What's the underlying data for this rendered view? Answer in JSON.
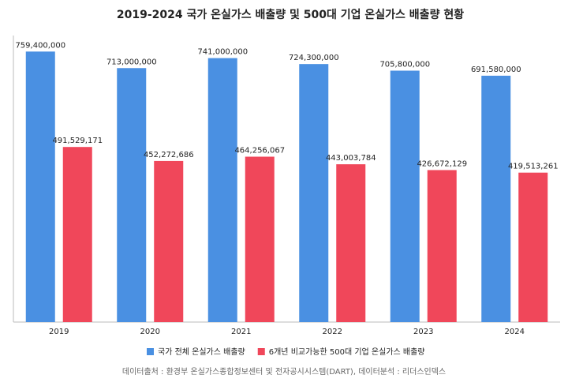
{
  "chart_data": {
    "type": "bar",
    "title": "2019-2024 국가 온실가스 배출량 및 500대 기업 온실가스 배출량 현황",
    "categories": [
      "2019",
      "2020",
      "2021",
      "2022",
      "2023",
      "2024"
    ],
    "series": [
      {
        "name": "국가 전체 온실가스 배출량",
        "color": "#4a90e2",
        "values": [
          759400000,
          713000000,
          741000000,
          724300000,
          705800000,
          691580000
        ],
        "value_labels": [
          "759,400,000",
          "713,000,000",
          "741,000,000",
          "724,300,000",
          "705,800,000",
          "691,580,000"
        ]
      },
      {
        "name": "6개년 비교가능한 500대 기업 온실가스 배출량",
        "color": "#f0475a",
        "values": [
          491529171,
          452272686,
          464256067,
          443003784,
          426672129,
          419513261
        ],
        "value_labels": [
          "491,529,171",
          "452,272,686",
          "464,256,067",
          "443,003,784",
          "426,672,129",
          "419,513,261"
        ]
      }
    ],
    "ylim": [
      0,
      800000000
    ],
    "legend": "bottom",
    "source": "데이터출처 : 환경부 온실가스종합정보센터 및 전자공시시스템(DART), 데이터분석 : 리더스인덱스"
  }
}
